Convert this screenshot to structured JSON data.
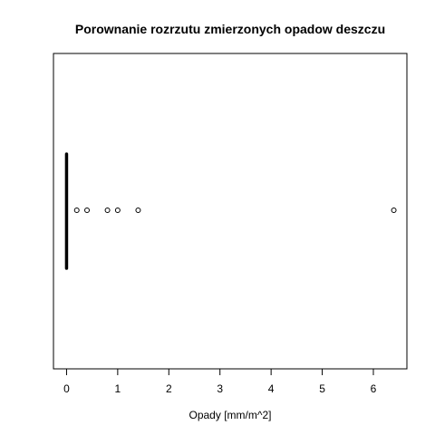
{
  "chart_data": {
    "type": "boxplot",
    "orientation": "horizontal",
    "title": "Porownanie rozrzutu zmierzonych opadow deszczu",
    "xlabel": "Opady [mm/m^2]",
    "ylabel": "",
    "xlim": [
      -0.256,
      6.656
    ],
    "xticks": [
      0,
      1,
      2,
      3,
      4,
      5,
      6
    ],
    "box": {
      "min": 0,
      "q1": 0,
      "median": 0,
      "q3": 0,
      "max": 0
    },
    "outliers": [
      0.2,
      0.4,
      0.8,
      1.0,
      1.4,
      6.4
    ],
    "grid": false,
    "legend": "none"
  }
}
